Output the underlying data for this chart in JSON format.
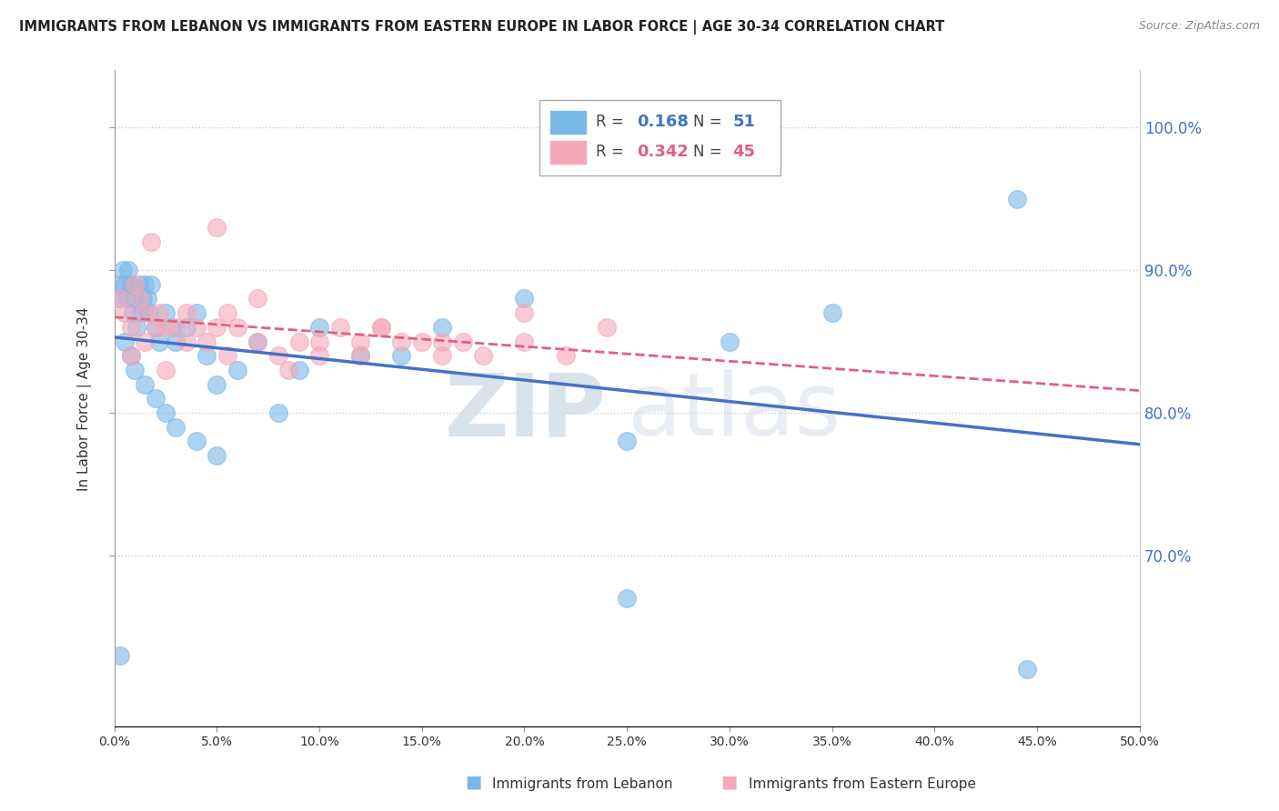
{
  "title": "IMMIGRANTS FROM LEBANON VS IMMIGRANTS FROM EASTERN EUROPE IN LABOR FORCE | AGE 30-34 CORRELATION CHART",
  "source": "Source: ZipAtlas.com",
  "ylabel": "In Labor Force | Age 30-34",
  "color_blue": "#7ab8e8",
  "color_pink": "#f4a7b9",
  "color_blue_dark": "#4472c4",
  "color_pink_dark": "#e06080",
  "color_right_axis": "#4472c4",
  "watermark_zip": "ZIP",
  "watermark_atlas": "atlas",
  "legend_box_color": "#f0f0f0",
  "xlim": [
    0,
    50
  ],
  "ylim": [
    58,
    104
  ],
  "yticks": [
    70,
    80,
    90,
    100
  ],
  "xticks": [
    0,
    5,
    10,
    15,
    20,
    25,
    30,
    35,
    40,
    45,
    50
  ],
  "blue_x": [
    0.2,
    0.3,
    0.4,
    0.5,
    0.6,
    0.7,
    0.8,
    0.9,
    1.0,
    1.1,
    1.2,
    1.3,
    1.4,
    1.5,
    1.6,
    1.7,
    1.8,
    2.0,
    2.2,
    2.5,
    2.8,
    3.0,
    3.5,
    4.0,
    4.5,
    5.0,
    6.0,
    7.0,
    8.0,
    9.0,
    10.0,
    12.0,
    14.0,
    16.0,
    20.0,
    25.0,
    30.0,
    35.0,
    44.0,
    0.5,
    0.8,
    1.0,
    1.5,
    2.0,
    2.5,
    3.0,
    4.0,
    5.0,
    25.0,
    44.5,
    0.3
  ],
  "blue_y": [
    88,
    89,
    90,
    89,
    88,
    90,
    89,
    87,
    88,
    86,
    89,
    87,
    88,
    89,
    88,
    87,
    89,
    86,
    85,
    87,
    86,
    85,
    86,
    87,
    84,
    82,
    83,
    85,
    80,
    83,
    86,
    84,
    84,
    86,
    88,
    78,
    85,
    87,
    95,
    85,
    84,
    83,
    82,
    81,
    80,
    79,
    78,
    77,
    67,
    62,
    63
  ],
  "pink_x": [
    0.3,
    0.5,
    0.8,
    1.0,
    1.2,
    1.5,
    1.8,
    2.0,
    2.2,
    2.5,
    3.0,
    3.5,
    4.0,
    4.5,
    5.0,
    5.5,
    6.0,
    7.0,
    8.0,
    9.0,
    10.0,
    11.0,
    12.0,
    13.0,
    14.0,
    15.0,
    16.0,
    17.0,
    18.0,
    20.0,
    22.0,
    5.0,
    7.0,
    10.0,
    13.0,
    16.0,
    20.0,
    24.0,
    0.8,
    1.5,
    2.5,
    3.5,
    5.5,
    8.5,
    12.0
  ],
  "pink_y": [
    88,
    87,
    86,
    89,
    88,
    87,
    92,
    86,
    87,
    86,
    86,
    87,
    86,
    85,
    86,
    87,
    86,
    85,
    84,
    85,
    84,
    86,
    85,
    86,
    85,
    85,
    85,
    85,
    84,
    85,
    84,
    93,
    88,
    85,
    86,
    84,
    87,
    86,
    84,
    85,
    83,
    85,
    84,
    83,
    84
  ]
}
